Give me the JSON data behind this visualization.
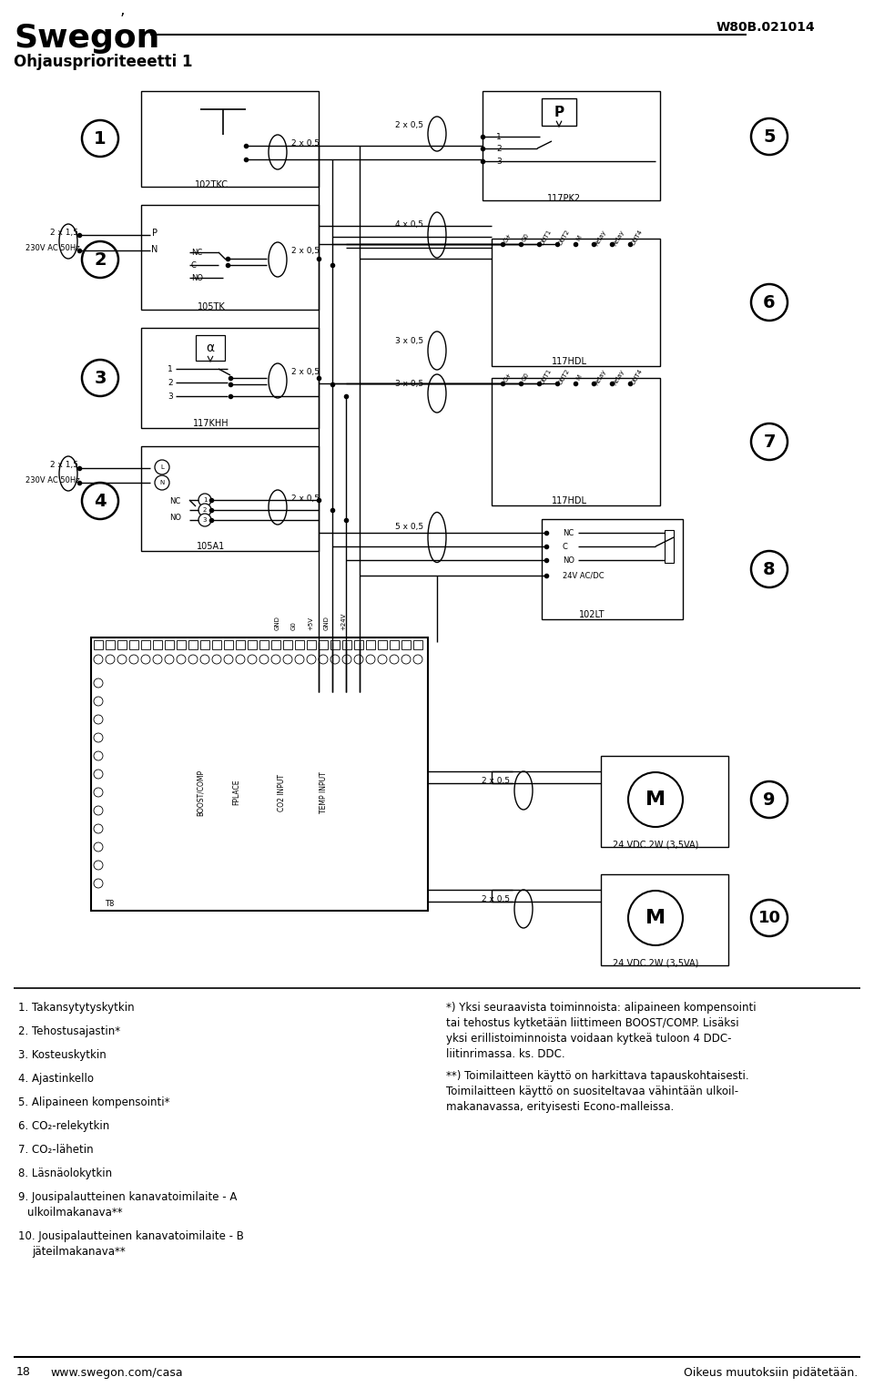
{
  "title": "Ohjausprioriteeetti 1",
  "doc_number": "W80B.021014",
  "page_number": "18",
  "website": "www.swegon.com/casa",
  "rights_text": "Oikeus muutoksiin pidätetään.",
  "bg_color": "#ffffff",
  "line_color": "#000000",
  "numbered_items": [
    "1. Takansytytyskytkin",
    "2. Tehostusajastin*",
    "3. Kosteuskytkin",
    "4. Ajastinkello",
    "5. Alipaineen kompensointi*",
    "6. CO₂-relekytkin",
    "7. CO₂-lähetin",
    "8. Läsnäolokytkin",
    "9. Jousipalautteinen kanavatoimilaite - A\n    ulkoilmakanava**",
    "10. Jousipalautteinen kanavatoimilaite - B\n     jäteilmakanava**"
  ],
  "note1_lines": [
    "*) Yksi seuraavista toiminnoista: alipaineen kompensointi",
    "tai tehostus kytketään liittimeen BOOST/COMP. Lisäksi",
    "yksi erillistoiminnoista voidaan kytkeä tuloon 4 DDC-",
    "liitinrimassa. ks. DDC."
  ],
  "note2_lines": [
    "**) Toimilaitteen käyttö on harkittava tapauskohtaisesti.",
    "Toimilaitteen käyttö on suositeltavaa vähintään ulkoil-",
    "makanavassa, erityisesti Econo-malleissa."
  ],
  "M9_label": "24 VDC 2W (3,5VA)",
  "M10_label": "24 VDC 2W (3,5VA)",
  "connector_labels6": [
    "G+",
    "G0",
    "OUT1",
    "OUT2",
    "M",
    "Relay",
    "Relay",
    "OUT4"
  ],
  "connector_labels7": [
    "G+",
    "G0",
    "OUT1",
    "OUT2",
    "M",
    "Relay",
    "Relay",
    "OUT4"
  ]
}
